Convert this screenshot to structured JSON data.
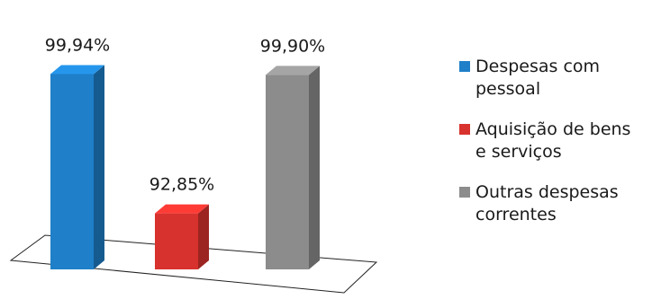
{
  "chart_data": {
    "type": "bar",
    "categories": [
      "Despesas com pessoal",
      "Aquisição de bens e serviços",
      "Outras despesas correntes"
    ],
    "values": [
      99.94,
      92.85,
      99.9
    ],
    "data_labels": [
      "99,94%",
      "92,85%",
      "99,90%"
    ],
    "colors": [
      "#1f7fc8",
      "#d8322e",
      "#8c8c8c"
    ],
    "legend": {
      "position": "right",
      "entries": [
        {
          "label": "Despesas com pessoal",
          "color": "#1f7fc8"
        },
        {
          "label": "Aquisição de bens e serviços",
          "color": "#d8322e"
        },
        {
          "label": "Outras despesas correntes",
          "color": "#8c8c8c"
        }
      ]
    },
    "style": "3d-column",
    "grid": false
  }
}
